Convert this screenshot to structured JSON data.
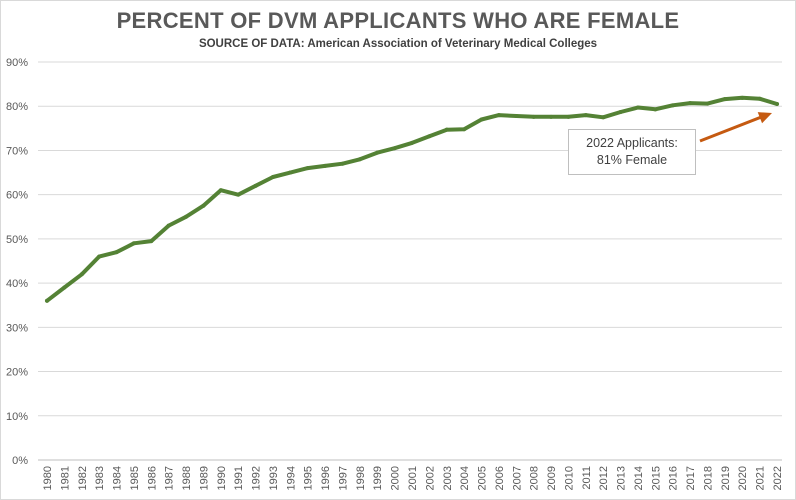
{
  "chart_data": {
    "type": "line",
    "title": "PERCENT OF DVM APPLICANTS WHO ARE FEMALE",
    "subtitle": "SOURCE OF DATA: American Association of Veterinary Medical Colleges",
    "xlabel": "",
    "ylabel": "",
    "ylim": [
      0,
      90
    ],
    "yticks": [
      "0%",
      "10%",
      "20%",
      "30%",
      "40%",
      "50%",
      "60%",
      "70%",
      "80%",
      "90%"
    ],
    "grid": true,
    "legend": "none",
    "x": [
      "1980",
      "1981",
      "1982",
      "1983",
      "1984",
      "1985",
      "1986",
      "1987",
      "1988",
      "1989",
      "1990",
      "1991",
      "1992",
      "1993",
      "1994",
      "1995",
      "1996",
      "1997",
      "1998",
      "1999",
      "2000",
      "2001",
      "2002",
      "2003",
      "2004",
      "2005",
      "2006",
      "2007",
      "2008",
      "2009",
      "2010",
      "2011",
      "2012",
      "2013",
      "2014",
      "2015",
      "2016",
      "2017",
      "2018",
      "2019",
      "2020",
      "2021",
      "2022"
    ],
    "series": [
      {
        "color": "#548235",
        "values": [
          36,
          39,
          42,
          46,
          47,
          49,
          49.5,
          53,
          55,
          57.5,
          61,
          60,
          62,
          64,
          65,
          66,
          66.5,
          67,
          68,
          69.5,
          70.5,
          71.7,
          73.2,
          74.7,
          74.8,
          77,
          78,
          77.8,
          77.6,
          77.6,
          77.6,
          78,
          77.5,
          78.7,
          79.7,
          79.3,
          80.2,
          80.7,
          80.6,
          81.6,
          81.9,
          81.7,
          80.5
        ]
      }
    ],
    "annotation": {
      "line1": "2022 Applicants:",
      "line2": "81% Female",
      "arrow_color": "#c55a11"
    }
  }
}
